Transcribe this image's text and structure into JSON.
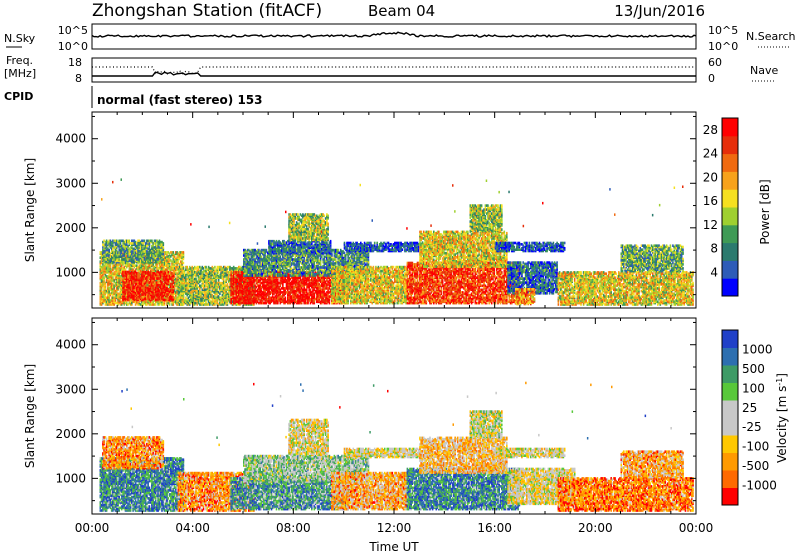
{
  "header": {
    "station": "Zhongshan Station (fitACF)",
    "beam": "Beam 04",
    "date": "13/Jun/2016"
  },
  "panels": {
    "nsky": {
      "left_label": "N.Sky",
      "left_ticks": [
        "10^5",
        "10^0"
      ],
      "right_ticks": [
        "10^5",
        "10^0"
      ],
      "right_label": "N.Search"
    },
    "freq": {
      "left_label_1": "Freq.",
      "left_label_2": "[MHz]",
      "left_ticks": [
        "18",
        "8"
      ],
      "right_ticks": [
        "60",
        "0"
      ],
      "right_label": "Nave"
    },
    "cpid": {
      "label": "CPID",
      "text": "normal (fast stereo) 153"
    }
  },
  "colors": {
    "power_scale": [
      "#0000ff",
      "#2e5cb8",
      "#2b7a6e",
      "#3f9a55",
      "#9fd030",
      "#f5e020",
      "#f7a21c",
      "#f06a10",
      "#e62e0a",
      "#ff0000"
    ],
    "velocity_scale": [
      "#ff0000",
      "#ff6a00",
      "#ff9a00",
      "#ffc800",
      "#c8c8c8",
      "#c8c8c8",
      "#58c83a",
      "#3e9b66",
      "#2d6fb0",
      "#2040c8"
    ]
  },
  "chart_data": [
    {
      "type": "heatmap",
      "name": "power-panel",
      "ylabel": "Slant Range [km]",
      "y_ticks": [
        1000,
        2000,
        3000,
        4000
      ],
      "ylim": [
        200,
        4600
      ],
      "xlim": [
        0,
        24
      ],
      "colorbar": {
        "label": "Power [dB]",
        "ticks": [
          4,
          8,
          12,
          16,
          20,
          24,
          28
        ],
        "range": [
          0,
          30
        ]
      },
      "regions": [
        {
          "t0": 0.3,
          "t1": 3.6,
          "r0": 250,
          "r1": 1450,
          "level": 0.55
        },
        {
          "t0": 1.2,
          "t1": 3.2,
          "r0": 350,
          "r1": 1000,
          "level": 0.9
        },
        {
          "t0": 0.4,
          "t1": 2.8,
          "r0": 1200,
          "r1": 1700,
          "level": 0.35
        },
        {
          "t0": 3.4,
          "t1": 6.4,
          "r0": 250,
          "r1": 1100,
          "level": 0.45
        },
        {
          "t0": 5.5,
          "t1": 10.2,
          "r0": 280,
          "r1": 1000,
          "level": 0.95
        },
        {
          "t0": 6.0,
          "t1": 11.0,
          "r0": 900,
          "r1": 1500,
          "level": 0.3
        },
        {
          "t0": 7.0,
          "t1": 9.5,
          "r0": 1400,
          "r1": 1700,
          "level": 0.2
        },
        {
          "t0": 7.8,
          "t1": 9.4,
          "r0": 1700,
          "r1": 2300,
          "level": 0.45
        },
        {
          "t0": 10.0,
          "t1": 13.0,
          "r0": 1450,
          "r1": 1650,
          "level": 0.15
        },
        {
          "t0": 9.5,
          "t1": 12.5,
          "r0": 280,
          "r1": 1100,
          "level": 0.55
        },
        {
          "t0": 12.5,
          "t1": 17.0,
          "r0": 280,
          "r1": 1200,
          "level": 0.85
        },
        {
          "t0": 13.0,
          "t1": 16.5,
          "r0": 1100,
          "r1": 1900,
          "level": 0.55
        },
        {
          "t0": 15.0,
          "t1": 16.3,
          "r0": 1900,
          "r1": 2500,
          "level": 0.45
        },
        {
          "t0": 16.0,
          "t1": 18.8,
          "r0": 1450,
          "r1": 1650,
          "level": 0.15
        },
        {
          "t0": 16.5,
          "t1": 18.5,
          "r0": 500,
          "r1": 1200,
          "level": 0.2
        },
        {
          "t0": 16.8,
          "t1": 17.6,
          "r0": 260,
          "r1": 600,
          "level": 0.7
        },
        {
          "t0": 18.5,
          "t1": 23.9,
          "r0": 250,
          "r1": 1000,
          "level": 0.55
        },
        {
          "t0": 21.0,
          "t1": 23.5,
          "r0": 1000,
          "r1": 1600,
          "level": 0.35
        }
      ]
    },
    {
      "type": "heatmap",
      "name": "velocity-panel",
      "ylabel": "Slant Range [km]",
      "xlabel": "Time UT",
      "x_ticks": [
        "00:00",
        "04:00",
        "08:00",
        "12:00",
        "16:00",
        "20:00",
        "00:00"
      ],
      "y_ticks": [
        1000,
        2000,
        3000,
        4000
      ],
      "ylim": [
        200,
        4600
      ],
      "xlim": [
        0,
        24
      ],
      "colorbar": {
        "label": "Velocity [m s^-1]",
        "ticks": [
          -1000,
          -500,
          -100,
          -25,
          25,
          100,
          500,
          1000
        ]
      },
      "regions": [
        {
          "t0": 0.3,
          "t1": 3.6,
          "r0": 250,
          "r1": 1450,
          "level": 0.8
        },
        {
          "t0": 0.4,
          "t1": 2.8,
          "r0": 1200,
          "r1": 1900,
          "level": 0.25
        },
        {
          "t0": 3.4,
          "t1": 6.4,
          "r0": 250,
          "r1": 1100,
          "level": 0.25
        },
        {
          "t0": 5.5,
          "t1": 10.2,
          "r0": 280,
          "r1": 1000,
          "level": 0.75
        },
        {
          "t0": 6.0,
          "t1": 11.0,
          "r0": 900,
          "r1": 1500,
          "level": 0.6
        },
        {
          "t0": 7.8,
          "t1": 9.4,
          "r0": 1500,
          "r1": 2300,
          "level": 0.45
        },
        {
          "t0": 10.0,
          "t1": 13.0,
          "r0": 1450,
          "r1": 1650,
          "level": 0.45
        },
        {
          "t0": 9.5,
          "t1": 12.5,
          "r0": 280,
          "r1": 1100,
          "level": 0.3
        },
        {
          "t0": 12.5,
          "t1": 17.0,
          "r0": 280,
          "r1": 1200,
          "level": 0.8
        },
        {
          "t0": 13.0,
          "t1": 16.5,
          "r0": 1100,
          "r1": 1900,
          "level": 0.35
        },
        {
          "t0": 15.0,
          "t1": 16.3,
          "r0": 1900,
          "r1": 2500,
          "level": 0.5
        },
        {
          "t0": 16.0,
          "t1": 18.8,
          "r0": 1450,
          "r1": 1650,
          "level": 0.45
        },
        {
          "t0": 16.5,
          "t1": 19.2,
          "r0": 400,
          "r1": 1200,
          "level": 0.45
        },
        {
          "t0": 18.5,
          "t1": 23.9,
          "r0": 250,
          "r1": 1000,
          "level": 0.2
        },
        {
          "t0": 21.0,
          "t1": 23.5,
          "r0": 1000,
          "r1": 1600,
          "level": 0.3
        }
      ]
    }
  ]
}
